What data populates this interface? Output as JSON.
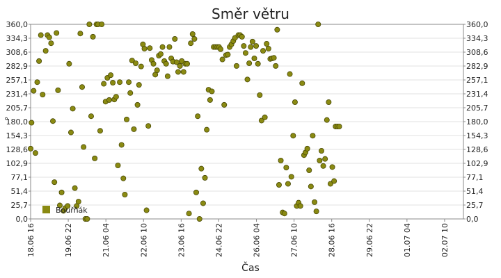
{
  "chart_data": {
    "type": "scatter",
    "title": "Směr větru",
    "xlabel": "Čas",
    "ylabel": "°",
    "ylim": [
      0,
      360
    ],
    "yticks": [
      "0,0",
      "25,7",
      "51,4",
      "77,1",
      "102,9",
      "128,6",
      "154,3",
      "180,0",
      "205,7",
      "231,4",
      "257,1",
      "282,9",
      "308,6",
      "334,3",
      "360,0"
    ],
    "yticks_right": true,
    "xlim": [
      0,
      14.375
    ],
    "xticks": [
      {
        "x": 0,
        "label": "18.06 16"
      },
      {
        "x": 1.25,
        "label": "19.06 22"
      },
      {
        "x": 2.5,
        "label": "21.06 04"
      },
      {
        "x": 3.75,
        "label": "22.06 10"
      },
      {
        "x": 5.0,
        "label": "23.06 16"
      },
      {
        "x": 6.25,
        "label": "24.06 22"
      },
      {
        "x": 7.5,
        "label": "26.06 04"
      },
      {
        "x": 8.75,
        "label": "27.06 10"
      },
      {
        "x": 10.0,
        "label": "28.06 16"
      },
      {
        "x": 11.25,
        "label": "29.06 22"
      },
      {
        "x": 12.5,
        "label": "01.07 04"
      },
      {
        "x": 13.75,
        "label": "02.07 10"
      }
    ],
    "x_unit_note": "",
    "grid": true,
    "legend": "bottom-left",
    "series": [
      {
        "name": "Bouřňák",
        "color": "#8a8a12",
        "points": [
          [
            0.0,
            130
          ],
          [
            0.03,
            178
          ],
          [
            0.1,
            237
          ],
          [
            0.16,
            122
          ],
          [
            0.22,
            253
          ],
          [
            0.28,
            292
          ],
          [
            0.34,
            340
          ],
          [
            0.4,
            230
          ],
          [
            0.5,
            311
          ],
          [
            0.56,
            340
          ],
          [
            0.62,
            336
          ],
          [
            0.68,
            325
          ],
          [
            0.74,
            181
          ],
          [
            0.79,
            68
          ],
          [
            0.86,
            344
          ],
          [
            0.91,
            238
          ],
          [
            0.97,
            25
          ],
          [
            1.03,
            49
          ],
          [
            1.09,
            15
          ],
          [
            1.15,
            20
          ],
          [
            1.23,
            24
          ],
          [
            1.28,
            287
          ],
          [
            1.34,
            160
          ],
          [
            1.4,
            204
          ],
          [
            1.47,
            57
          ],
          [
            1.53,
            24
          ],
          [
            1.59,
            32
          ],
          [
            1.65,
            343
          ],
          [
            1.71,
            244
          ],
          [
            1.76,
            133
          ],
          [
            1.82,
            0
          ],
          [
            1.88,
            0
          ],
          [
            1.95,
            360
          ],
          [
            2.01,
            190
          ],
          [
            2.07,
            337
          ],
          [
            2.13,
            112
          ],
          [
            2.19,
            360
          ],
          [
            2.24,
            360
          ],
          [
            2.31,
            163
          ],
          [
            2.36,
            360
          ],
          [
            2.43,
            250
          ],
          [
            2.49,
            217
          ],
          [
            2.55,
            261
          ],
          [
            2.61,
            220
          ],
          [
            2.66,
            266
          ],
          [
            2.73,
            252
          ],
          [
            2.78,
            221
          ],
          [
            2.84,
            226
          ],
          [
            2.9,
            99
          ],
          [
            2.96,
            253
          ],
          [
            3.02,
            137
          ],
          [
            3.08,
            75
          ],
          [
            3.13,
            45
          ],
          [
            3.19,
            184
          ],
          [
            3.26,
            253
          ],
          [
            3.31,
            233
          ],
          [
            3.37,
            293
          ],
          [
            3.43,
            166
          ],
          [
            3.49,
            288
          ],
          [
            3.55,
            211
          ],
          [
            3.6,
            248
          ],
          [
            3.67,
            282
          ],
          [
            3.73,
            323
          ],
          [
            3.78,
            315
          ],
          [
            3.85,
            16
          ],
          [
            3.91,
            172
          ],
          [
            3.96,
            316
          ],
          [
            4.02,
            294
          ],
          [
            4.08,
            287
          ],
          [
            4.14,
            267
          ],
          [
            4.2,
            275
          ],
          [
            4.26,
            302
          ],
          [
            4.32,
            305
          ],
          [
            4.38,
            318
          ],
          [
            4.44,
            292
          ],
          [
            4.5,
            287
          ],
          [
            4.55,
            264
          ],
          [
            4.61,
            318
          ],
          [
            4.67,
            297
          ],
          [
            4.73,
            291
          ],
          [
            4.79,
            333
          ],
          [
            4.85,
            290
          ],
          [
            4.9,
            272
          ],
          [
            4.96,
            283
          ],
          [
            5.02,
            292
          ],
          [
            5.08,
            272
          ],
          [
            5.14,
            287
          ],
          [
            5.2,
            287
          ],
          [
            5.26,
            10
          ],
          [
            5.32,
            325
          ],
          [
            5.38,
            342
          ],
          [
            5.44,
            333
          ],
          [
            5.5,
            49
          ],
          [
            5.55,
            190
          ],
          [
            5.61,
            0
          ],
          [
            5.67,
            93
          ],
          [
            5.73,
            29
          ],
          [
            5.79,
            76
          ],
          [
            5.85,
            165
          ],
          [
            5.91,
            239
          ],
          [
            5.96,
            220
          ],
          [
            6.02,
            236
          ],
          [
            6.08,
            318
          ],
          [
            6.14,
            318
          ],
          [
            6.2,
            318
          ],
          [
            6.26,
            318
          ],
          [
            6.31,
            314
          ],
          [
            6.37,
            295
          ],
          [
            6.43,
            211
          ],
          [
            6.49,
            303
          ],
          [
            6.55,
            304
          ],
          [
            6.61,
            318
          ],
          [
            6.67,
            323
          ],
          [
            6.73,
            329
          ],
          [
            6.79,
            335
          ],
          [
            6.84,
            283
          ],
          [
            6.9,
            340
          ],
          [
            6.96,
            340
          ],
          [
            7.02,
            337
          ],
          [
            7.08,
            320
          ],
          [
            7.14,
            307
          ],
          [
            7.2,
            258
          ],
          [
            7.26,
            288
          ],
          [
            7.31,
            318
          ],
          [
            7.37,
            328
          ],
          [
            7.43,
            297
          ],
          [
            7.49,
            320
          ],
          [
            7.55,
            287
          ],
          [
            7.61,
            229
          ],
          [
            7.67,
            182
          ],
          [
            7.72,
            311
          ],
          [
            7.78,
            188
          ],
          [
            7.84,
            324
          ],
          [
            7.9,
            315
          ],
          [
            7.96,
            296
          ],
          [
            8.02,
            297
          ],
          [
            8.08,
            298
          ],
          [
            8.14,
            283
          ],
          [
            8.19,
            350
          ],
          [
            8.25,
            63
          ],
          [
            8.31,
            108
          ],
          [
            8.37,
            12
          ],
          [
            8.43,
            10
          ],
          [
            8.49,
            95
          ],
          [
            8.55,
            65
          ],
          [
            8.61,
            268
          ],
          [
            8.66,
            78
          ],
          [
            8.72,
            154
          ],
          [
            8.78,
            216
          ],
          [
            8.84,
            24
          ],
          [
            8.9,
            30
          ],
          [
            8.96,
            24
          ],
          [
            9.02,
            251
          ],
          [
            9.08,
            118
          ],
          [
            9.13,
            123
          ],
          [
            9.19,
            130
          ],
          [
            9.25,
            90
          ],
          [
            9.31,
            60
          ],
          [
            9.37,
            154
          ],
          [
            9.43,
            31
          ],
          [
            9.49,
            14
          ],
          [
            9.55,
            360
          ],
          [
            9.6,
            108
          ],
          [
            9.66,
            126
          ],
          [
            9.72,
            98
          ],
          [
            9.78,
            111
          ],
          [
            9.84,
            183
          ],
          [
            9.9,
            216
          ],
          [
            9.96,
            65
          ],
          [
            10.02,
            96
          ],
          [
            10.08,
            70
          ],
          [
            10.13,
            171
          ],
          [
            10.19,
            171
          ],
          [
            10.25,
            171
          ]
        ]
      }
    ]
  }
}
